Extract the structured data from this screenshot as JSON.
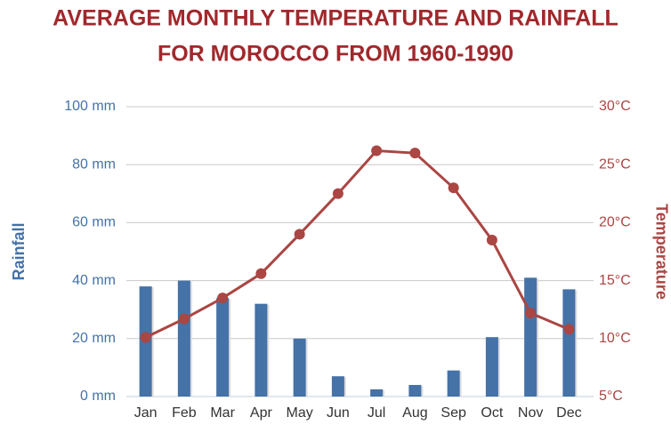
{
  "chart_data": {
    "type": "bar",
    "title": [
      "AVERAGE MONTHLY TEMPERATURE AND RAINFALL",
      "FOR MOROCCO FROM 1960-1990"
    ],
    "ylabel": "Rainfall",
    "y2label": "Temperature",
    "categories": [
      "Jan",
      "Feb",
      "Mar",
      "Apr",
      "May",
      "Jun",
      "Jul",
      "Aug",
      "Sep",
      "Oct",
      "Nov",
      "Dec"
    ],
    "series": [
      {
        "name": "Rainfall",
        "type": "bar",
        "color": "#4572a7",
        "values": [
          38,
          40,
          34,
          32,
          20,
          7,
          2.5,
          4,
          9,
          20.5,
          41,
          37
        ]
      },
      {
        "name": "Temperature",
        "type": "line",
        "axis": "y2",
        "color": "#aa4643",
        "values": [
          10.1,
          11.7,
          13.5,
          15.6,
          19.0,
          22.5,
          26.2,
          26.0,
          23.0,
          18.5,
          12.2,
          10.8
        ]
      }
    ],
    "ylim": [
      0,
      100
    ],
    "yticks": [
      {
        "value": 0,
        "label": "0 mm"
      },
      {
        "value": 20,
        "label": "20 mm"
      },
      {
        "value": 40,
        "label": "40 mm"
      },
      {
        "value": 60,
        "label": "60 mm"
      },
      {
        "value": 80,
        "label": "80 mm"
      },
      {
        "value": 100,
        "label": "100 mm"
      }
    ],
    "y2lim": [
      5,
      30
    ],
    "y2ticks": [
      {
        "value": 5,
        "label": "5°C"
      },
      {
        "value": 10,
        "label": "10°C"
      },
      {
        "value": 15,
        "label": "15°C"
      },
      {
        "value": 20,
        "label": "20°C"
      },
      {
        "value": 25,
        "label": "25°C"
      },
      {
        "value": 30,
        "label": "30°C"
      }
    ],
    "grid": true
  }
}
